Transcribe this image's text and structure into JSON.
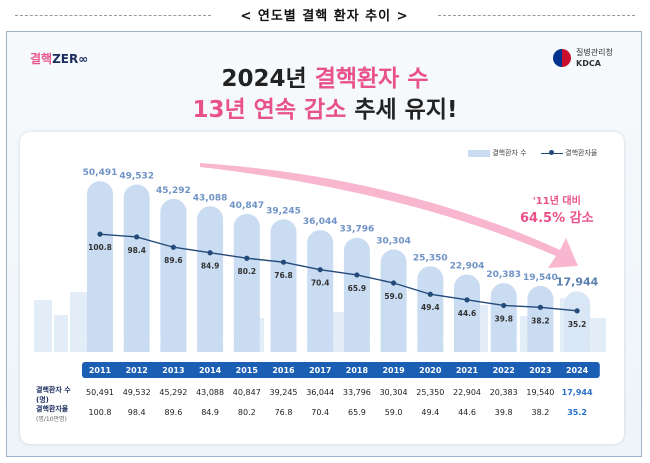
{
  "caption": "< 연도별 결핵 환자 추이 >",
  "logo": {
    "pre": "결핵",
    "post": "ZER∞"
  },
  "agency": {
    "name": "질병관리청",
    "abbr": "KDCA"
  },
  "title": {
    "line1_year": "2024년",
    "line1_highlight": "결핵환자 수",
    "line2_highlight": "13년 연속 감소",
    "line2_rest": "추세 유지!"
  },
  "legend": {
    "bar": "결핵환자 수",
    "line": "결핵환자율"
  },
  "annotation": {
    "line1": "'11년 대비",
    "line2": "64.5% 감소"
  },
  "chart_data": {
    "type": "bar",
    "categories": [
      "2011",
      "2012",
      "2013",
      "2014",
      "2015",
      "2016",
      "2017",
      "2018",
      "2019",
      "2020",
      "2021",
      "2022",
      "2023",
      "2024"
    ],
    "series": [
      {
        "name": "결핵환자 수",
        "values": [
          50491,
          49532,
          45292,
          43088,
          40847,
          39245,
          36044,
          33796,
          30304,
          25350,
          22904,
          20383,
          19540,
          17944
        ]
      },
      {
        "name": "결핵환자율",
        "values": [
          100.8,
          98.4,
          89.6,
          84.9,
          80.2,
          76.8,
          70.4,
          65.9,
          59.0,
          49.4,
          44.6,
          39.8,
          38.2,
          35.2
        ]
      }
    ],
    "bar_labels": [
      "50,491",
      "49,532",
      "45,292",
      "43,088",
      "40,847",
      "39,245",
      "36,044",
      "33,796",
      "30,304",
      "25,350",
      "22,904",
      "20,383",
      "19,540",
      "17,944"
    ],
    "rate_labels": [
      "100.8",
      "98.4",
      "89.6",
      "84.9",
      "80.2",
      "76.8",
      "70.4",
      "65.9",
      "59.0",
      "49.4",
      "44.6",
      "39.8",
      "38.2",
      "35.2"
    ],
    "ylim": [
      0,
      55000
    ],
    "rate_lim": [
      0,
      130
    ],
    "legend_position": "top-right",
    "colors": {
      "bar": "#c9dcf2",
      "bar_highlight": "#d8e6f5",
      "line": "#244a7a",
      "year_band": "#1a5fb4",
      "accent": "#e8518a"
    }
  },
  "table": {
    "row1_header": "결핵환자 수(명)",
    "row2_header": "결핵환자율",
    "row2_sub": "(명/10만명)",
    "row1": [
      "50,491",
      "49,532",
      "45,292",
      "43,088",
      "40,847",
      "39,245",
      "36,044",
      "33,796",
      "30,304",
      "25,350",
      "22,904",
      "20,383",
      "19,540",
      "17,944"
    ],
    "row2": [
      "100.8",
      "98.4",
      "89.6",
      "84.9",
      "80.2",
      "76.8",
      "70.4",
      "65.9",
      "59.0",
      "49.4",
      "44.6",
      "39.8",
      "38.2",
      "35.2"
    ]
  }
}
